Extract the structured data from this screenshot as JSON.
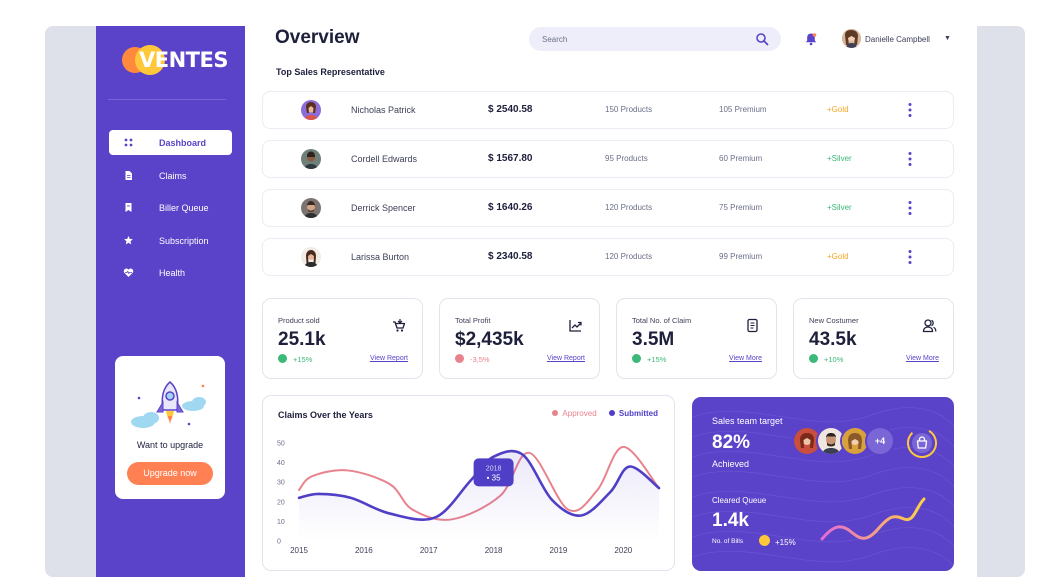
{
  "brand": {
    "name": "VENTES"
  },
  "sidebar": {
    "items": [
      {
        "label": "Dashboard",
        "icon": "dashboard-icon",
        "active": true
      },
      {
        "label": "Claims",
        "icon": "document-icon"
      },
      {
        "label": "Biller Queue",
        "icon": "bookmark-icon"
      },
      {
        "label": "Subscription",
        "icon": "star-icon"
      },
      {
        "label": "Health",
        "icon": "heart-pulse-icon"
      }
    ],
    "upgrade": {
      "title": "Want to upgrade",
      "button": "Upgrade now"
    }
  },
  "header": {
    "title": "Overview",
    "search_placeholder": "Search",
    "user_name": "Danielle Campbell"
  },
  "reps_section": {
    "title": "Top Sales Representative",
    "rows": [
      {
        "name": "Nicholas Patrick",
        "amount": "$ 2540.58",
        "products": "150 Products",
        "premium": "105 Premium",
        "tier": "+Gold"
      },
      {
        "name": "Cordell Edwards",
        "amount": "$ 1567.80",
        "products": "95 Products",
        "premium": "60 Premium",
        "tier": "+Silver"
      },
      {
        "name": "Derrick Spencer",
        "amount": "$ 1640.26",
        "products": "120 Products",
        "premium": "75 Premium",
        "tier": "+Silver"
      },
      {
        "name": "Larissa Burton",
        "amount": "$ 2340.58",
        "products": "120 Products",
        "premium": "99 Premium",
        "tier": "+Gold"
      }
    ]
  },
  "stats": [
    {
      "label": "Product sold",
      "value": "25.1k",
      "change": "+15%",
      "link": "View Report",
      "icon": "cart-icon",
      "trend": "up"
    },
    {
      "label": "Total Profit",
      "value": "$2,435k",
      "change": "-3,5%",
      "link": "View Report",
      "icon": "trend-chart-icon",
      "trend": "down"
    },
    {
      "label": "Total No. of Claim",
      "value": "3.5M",
      "change": "+15%",
      "link": "View More",
      "icon": "document-icon",
      "trend": "up"
    },
    {
      "label": "New Costumer",
      "value": "43.5k",
      "change": "+10%",
      "link": "View More",
      "icon": "users-icon",
      "trend": "up"
    }
  ],
  "colors": {
    "primary": "#5a43c8",
    "approved": "#e8838e",
    "submitted": "#4f3fc6",
    "gold": "#f5a623",
    "silver": "#3cb878",
    "up": "#3cb878",
    "down": "#e8838e"
  },
  "claims_chart": {
    "title": "Claims Over the Years",
    "legend_approved": "Approved",
    "legend_submitted": "Submitted",
    "tooltip_year": "2018",
    "tooltip_value": "• 35"
  },
  "chart_data": {
    "type": "line",
    "title": "Claims Over the Years",
    "x": [
      2015,
      2016,
      2017,
      2018,
      2019,
      2020
    ],
    "x_range": [
      2015,
      2020.55
    ],
    "ylim": [
      0,
      50
    ],
    "yticks": [
      0,
      10,
      20,
      30,
      40,
      50
    ],
    "series": [
      {
        "name": "Approved",
        "x": [
          2015,
          2015.2,
          2015.75,
          2016.4,
          2016.75,
          2017.35,
          2018.1,
          2018.55,
          2019.15,
          2019.6,
          2020.0,
          2020.55
        ],
        "values": [
          26,
          33,
          36,
          29,
          16,
          11,
          23,
          45,
          16,
          26,
          48,
          27
        ]
      },
      {
        "name": "Submitted",
        "x": [
          2015,
          2015.3,
          2015.8,
          2016.4,
          2017.1,
          2017.65,
          2018.0,
          2018.45,
          2018.9,
          2019.35,
          2019.8,
          2020.1,
          2020.55
        ],
        "values": [
          22,
          24,
          22,
          14,
          12,
          31,
          43,
          44,
          21,
          13,
          25,
          38,
          27
        ]
      }
    ]
  },
  "sales_target": {
    "title": "Sales team target",
    "percent": "82%",
    "achieved": "Achieved",
    "more_count": "+4",
    "cleared_title": "Cleared Queue",
    "cleared_value": "1.4k",
    "bills_label": "No. of Bills",
    "bills_change": "+15%"
  }
}
